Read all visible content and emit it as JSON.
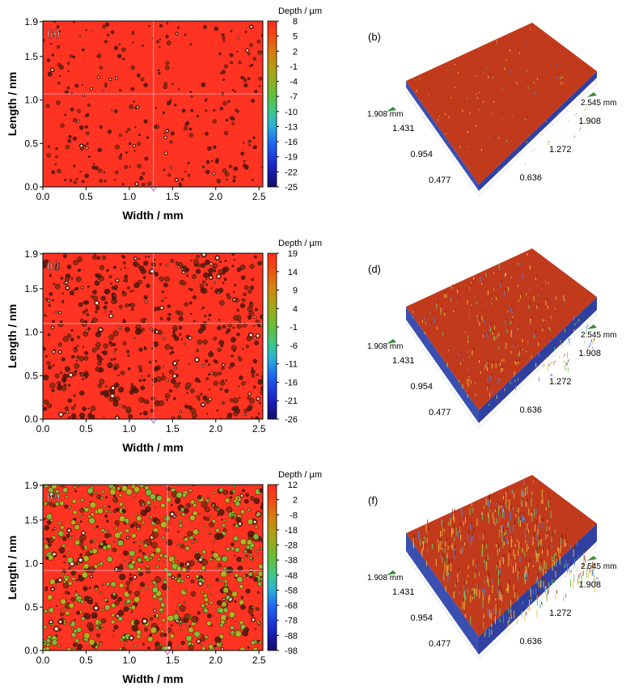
{
  "chart_data": [
    {
      "type": "heatmap",
      "panel_label": "(a)",
      "xlabel": "Width / mm",
      "ylabel": "Length / nm",
      "x_ticks": [
        "0.0",
        "0.5",
        "1.0",
        "1.5",
        "2.0",
        "2.5"
      ],
      "y_ticks": [
        "0.0",
        "0.5",
        "1.0",
        "1.5",
        "1.9"
      ],
      "xlim": [
        0,
        2.545
      ],
      "ylim": [
        0,
        1.908
      ],
      "colorbar_title": "Depth / µm",
      "colorbar_ticks": [
        "8",
        "5",
        "2",
        "-1",
        "-4",
        "-7",
        "-10",
        "-13",
        "-16",
        "-19",
        "-22",
        "-25"
      ],
      "depth_range": [
        -25,
        8
      ],
      "pit_density": 0.16,
      "greenish_fraction": 0.0,
      "crosshair": {
        "x": 1.28,
        "y": 1.07
      }
    },
    {
      "type": "surface",
      "panel_label": "(b)",
      "axis_labels": [
        "1.908 mm",
        "2.545 mm"
      ],
      "length_ticks": [
        "1.431",
        "0.954",
        "0.477"
      ],
      "width_ticks": [
        "1.908",
        "1.272",
        "0.636"
      ],
      "spike_density": 0.1,
      "spike_height": 0.4
    },
    {
      "type": "heatmap",
      "panel_label": "(c)",
      "xlabel": "Width / mm",
      "ylabel": "Length / nm",
      "x_ticks": [
        "0.0",
        "0.5",
        "1.0",
        "1.5",
        "2.0",
        "2.5"
      ],
      "y_ticks": [
        "0.0",
        "0.5",
        "1.0",
        "1.5",
        "1.9"
      ],
      "xlim": [
        0,
        2.545
      ],
      "ylim": [
        0,
        1.908
      ],
      "colorbar_title": "Depth / µm",
      "colorbar_ticks": [
        "19",
        "14",
        "9",
        "4",
        "-1",
        "-6",
        "-11",
        "-16",
        "-21",
        "-26"
      ],
      "depth_range": [
        -26,
        19
      ],
      "pit_density": 0.34,
      "greenish_fraction": 0.0,
      "crosshair": {
        "x": 1.28,
        "y": 1.1
      }
    },
    {
      "type": "surface",
      "panel_label": "(d)",
      "axis_labels": [
        "1.908 mm",
        "2.545 mm"
      ],
      "length_ticks": [
        "1.431",
        "0.954",
        "0.477"
      ],
      "width_ticks": [
        "1.908",
        "1.272",
        "0.636"
      ],
      "spike_density": 0.25,
      "spike_height": 0.8
    },
    {
      "type": "heatmap",
      "panel_label": "(e)",
      "xlabel": "Width / mm",
      "ylabel": "Length / nm",
      "x_ticks": [
        "0.0",
        "0.5",
        "1.0",
        "1.5",
        "2.0",
        "2.5"
      ],
      "y_ticks": [
        "0.0",
        "0.5",
        "1.0",
        "1.5",
        "1.9"
      ],
      "xlim": [
        0,
        2.545
      ],
      "ylim": [
        0,
        1.908
      ],
      "colorbar_title": "Depth / µm",
      "colorbar_ticks": [
        "12",
        "2",
        "-8",
        "-18",
        "-28",
        "-38",
        "-48",
        "-58",
        "-68",
        "-78",
        "-88",
        "-98"
      ],
      "depth_range": [
        -98,
        12
      ],
      "pit_density": 0.5,
      "greenish_fraction": 0.6,
      "crosshair": {
        "x": 1.44,
        "y": 0.92
      }
    },
    {
      "type": "surface",
      "panel_label": "(f)",
      "axis_labels": [
        "1.908 mm",
        "2.545 mm"
      ],
      "length_ticks": [
        "1.431",
        "0.954",
        "0.477"
      ],
      "width_ticks": [
        "1.908",
        "1.272",
        "0.636"
      ],
      "spike_density": 0.5,
      "spike_height": 1.4
    }
  ]
}
